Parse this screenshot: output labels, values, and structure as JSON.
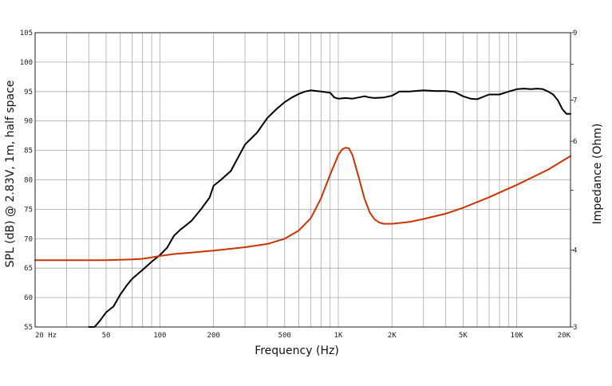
{
  "chart_data": {
    "type": "line",
    "title": "",
    "xlabel": "Frequency (Hz)",
    "ylabel": "SPL (dB) @ 2.83V, 1m, half space",
    "y2label": "Impedance (Ohm)",
    "x_scale": "log",
    "xlim": [
      20,
      20000
    ],
    "ylim": [
      55,
      105
    ],
    "y2_scale": "log",
    "y2lim": [
      3,
      9
    ],
    "grid": true,
    "x_tick_labels": [
      {
        "value": 20,
        "label": "20  Hz"
      },
      {
        "value": 50,
        "label": "50"
      },
      {
        "value": 100,
        "label": "100"
      },
      {
        "value": 200,
        "label": "200"
      },
      {
        "value": 500,
        "label": "500"
      },
      {
        "value": 1000,
        "label": "1K"
      },
      {
        "value": 2000,
        "label": "2K"
      },
      {
        "value": 5000,
        "label": "5K"
      },
      {
        "value": 10000,
        "label": "10K"
      },
      {
        "value": 20000,
        "label": "20K"
      }
    ],
    "y_ticks": [
      55,
      60,
      65,
      70,
      75,
      80,
      85,
      90,
      95,
      100,
      105
    ],
    "y2_ticks": [
      3,
      4,
      5,
      6,
      7,
      8,
      9
    ],
    "y2_tick_labels": [
      {
        "value": 3,
        "label": "3"
      },
      {
        "value": 4,
        "label": "4"
      },
      {
        "value": 6,
        "label": "6"
      },
      {
        "value": 7,
        "label": "7"
      },
      {
        "value": 9,
        "label": "9"
      }
    ],
    "series": [
      {
        "color": "#000000",
        "axis": "left",
        "x": [
          40,
          43,
          46,
          50,
          55,
          60,
          65,
          70,
          80,
          90,
          100,
          110,
          120,
          130,
          150,
          170,
          190,
          200,
          220,
          250,
          300,
          350,
          400,
          450,
          500,
          550,
          600,
          650,
          700,
          800,
          900,
          950,
          1000,
          1100,
          1200,
          1300,
          1400,
          1500,
          1600,
          1800,
          2000,
          2200,
          2500,
          3000,
          3500,
          4000,
          4500,
          5000,
          5500,
          6000,
          7000,
          8000,
          9000,
          10000,
          11000,
          12000,
          13000,
          14000,
          15000,
          16000,
          17000,
          18000,
          19000,
          20000
        ],
        "values": [
          53,
          54.5,
          56,
          57.5,
          58.5,
          60.5,
          62,
          63.2,
          64.7,
          66.1,
          67.2,
          68.5,
          70.5,
          71.5,
          73,
          75,
          77,
          79,
          80,
          81.5,
          86,
          88,
          90.5,
          92,
          93.2,
          94,
          94.6,
          95,
          95.2,
          95,
          94.8,
          94,
          93.8,
          93.9,
          93.8,
          94,
          94.2,
          94,
          93.9,
          94,
          94.3,
          95,
          95,
          95.2,
          95.1,
          95.1,
          94.9,
          94.2,
          93.8,
          93.7,
          94.5,
          94.5,
          95,
          95.4,
          95.5,
          95.4,
          95.5,
          95.4,
          95,
          94.5,
          93.5,
          92,
          91.2,
          91.2
        ]
      },
      {
        "color": "#cc3300",
        "axis": "right",
        "x": [
          20,
          50,
          70,
          80,
          90,
          100,
          120,
          150,
          200,
          300,
          400,
          500,
          600,
          700,
          800,
          900,
          1000,
          1050,
          1100,
          1150,
          1200,
          1300,
          1400,
          1500,
          1600,
          1700,
          1800,
          2000,
          2500,
          3000,
          4000,
          5000,
          7000,
          10000,
          15000,
          20000
        ],
        "values": [
          3.85,
          3.85,
          3.86,
          3.87,
          3.89,
          3.91,
          3.94,
          3.96,
          3.99,
          4.04,
          4.09,
          4.17,
          4.3,
          4.5,
          4.85,
          5.3,
          5.7,
          5.82,
          5.86,
          5.84,
          5.7,
          5.25,
          4.85,
          4.6,
          4.48,
          4.43,
          4.41,
          4.41,
          4.44,
          4.49,
          4.58,
          4.68,
          4.87,
          5.1,
          5.4,
          5.68
        ]
      }
    ]
  }
}
